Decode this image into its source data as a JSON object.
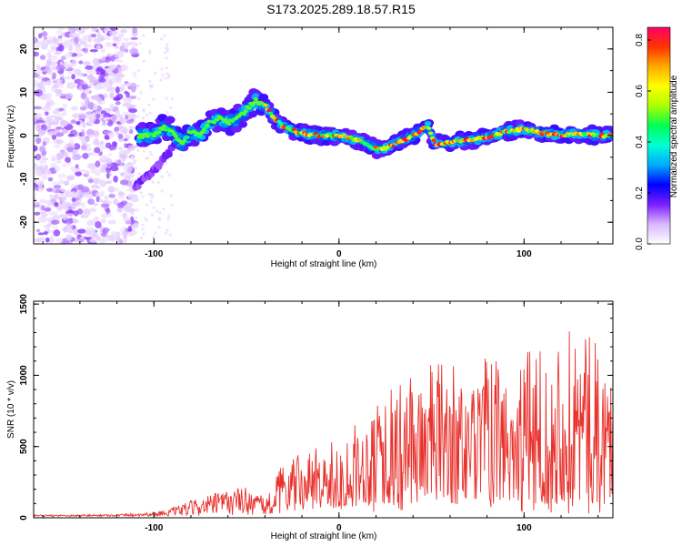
{
  "title": "S173.2025.289.18.57.R15",
  "colors": {
    "snr_line": "#e8322d",
    "frame": "#000000",
    "rainbow": [
      "#ffffff",
      "#d9b8ff",
      "#7b1fff",
      "#0000ff",
      "#00aaff",
      "#00ffd5",
      "#00ff55",
      "#aaff00",
      "#ffff00",
      "#ffaa00",
      "#ff3300",
      "#ff0066"
    ]
  },
  "chart_data": [
    {
      "type": "heatmap",
      "title": "S173.2025.289.18.57.R15",
      "xlabel": "Height of straight line (km)",
      "ylabel": "Frequency (Hz)",
      "xlim": [
        -165,
        148
      ],
      "ylim": [
        -25,
        25
      ],
      "x_ticks": [
        -100,
        0,
        100
      ],
      "x_tick_labels": [
        "-100",
        "0",
        "100"
      ],
      "y_ticks": [
        -20,
        -10,
        0,
        10,
        20
      ],
      "y_tick_labels": [
        "-20",
        "-10",
        "0",
        "10",
        "20"
      ],
      "colorbar": {
        "label": "Normalized spectral amplitude",
        "ticks": [
          0.0,
          0.2,
          0.4,
          0.6,
          0.8
        ],
        "tick_labels": [
          "0.0",
          "0.2",
          "0.4",
          "0.6",
          "0.8"
        ],
        "range": [
          0,
          0.85
        ]
      },
      "ridge": [
        [
          -108,
          0
        ],
        [
          -100,
          0
        ],
        [
          -95,
          2
        ],
        [
          -90,
          1
        ],
        [
          -85,
          -2
        ],
        [
          -80,
          1
        ],
        [
          -75,
          0
        ],
        [
          -70,
          3
        ],
        [
          -65,
          4
        ],
        [
          -60,
          3
        ],
        [
          -55,
          4
        ],
        [
          -50,
          6
        ],
        [
          -45,
          8
        ],
        [
          -40,
          7
        ],
        [
          -35,
          4
        ],
        [
          -30,
          2
        ],
        [
          -20,
          0.5
        ],
        [
          -10,
          0
        ],
        [
          0,
          0
        ],
        [
          10,
          -1
        ],
        [
          15,
          -2
        ],
        [
          20,
          -3
        ],
        [
          25,
          -3
        ],
        [
          30,
          -2
        ],
        [
          35,
          -1
        ],
        [
          40,
          0
        ],
        [
          45,
          1.5
        ],
        [
          48,
          2
        ],
        [
          52,
          -2
        ],
        [
          60,
          -1.5
        ],
        [
          70,
          -1
        ],
        [
          80,
          -0.5
        ],
        [
          90,
          1
        ],
        [
          100,
          1.5
        ],
        [
          110,
          0.5
        ],
        [
          120,
          0
        ],
        [
          130,
          0.5
        ],
        [
          140,
          0
        ],
        [
          147,
          0
        ]
      ],
      "secondary_branch": [
        [
          -110,
          -12
        ],
        [
          -100,
          -8
        ],
        [
          -90,
          -3
        ]
      ],
      "scatter_region_x": [
        -165,
        -110
      ]
    },
    {
      "type": "line",
      "xlabel": "Height of straight line (km)",
      "ylabel": "SNR (10 * v/v)",
      "xlim": [
        -165,
        148
      ],
      "ylim": [
        0,
        1520
      ],
      "x_ticks": [
        -100,
        0,
        100
      ],
      "x_tick_labels": [
        "-100",
        "0",
        "100"
      ],
      "y_ticks": [
        0,
        500,
        1000,
        1500
      ],
      "y_tick_labels": [
        "0",
        "500",
        "1000",
        "1500"
      ],
      "envelope": [
        [
          -165,
          20
        ],
        [
          -120,
          25
        ],
        [
          -100,
          40
        ],
        [
          -90,
          70
        ],
        [
          -80,
          120
        ],
        [
          -70,
          160
        ],
        [
          -60,
          200
        ],
        [
          -50,
          220
        ],
        [
          -40,
          140
        ],
        [
          -35,
          260
        ],
        [
          -30,
          400
        ],
        [
          -20,
          450
        ],
        [
          -10,
          500
        ],
        [
          0,
          550
        ],
        [
          10,
          680
        ],
        [
          15,
          700
        ],
        [
          20,
          1000
        ],
        [
          30,
          900
        ],
        [
          40,
          1000
        ],
        [
          50,
          1100
        ],
        [
          60,
          1100
        ],
        [
          70,
          950
        ],
        [
          80,
          1150
        ],
        [
          90,
          1050
        ],
        [
          100,
          1150
        ],
        [
          110,
          1300
        ],
        [
          120,
          1300
        ],
        [
          130,
          1400
        ],
        [
          140,
          1200
        ],
        [
          148,
          1100
        ]
      ],
      "floor": [
        [
          -165,
          8
        ],
        [
          -100,
          10
        ],
        [
          -40,
          20
        ],
        [
          -30,
          120
        ],
        [
          -10,
          180
        ],
        [
          0,
          220
        ],
        [
          10,
          260
        ],
        [
          20,
          300
        ],
        [
          40,
          320
        ],
        [
          148,
          320
        ]
      ]
    }
  ]
}
